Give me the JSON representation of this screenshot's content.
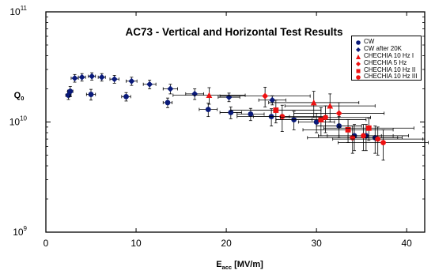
{
  "chart_data": {
    "type": "scatter",
    "title": "AC73  -  Vertical and Horizontal Test Results",
    "xlabel": "E",
    "xlabel_sub": "acc",
    "xlabel_unit": " [MV/m]",
    "ylabel": "Q",
    "ylabel_sub": "0",
    "yscale": "log",
    "xlim": [
      0,
      42
    ],
    "ylim": [
      1000000000.0,
      100000000000.0
    ],
    "x_ticks": [
      "0",
      "10",
      "20",
      "30",
      "40"
    ],
    "y_ticks": [
      {
        "base": "10",
        "exp": "9"
      },
      {
        "base": "10",
        "exp": "10"
      },
      {
        "base": "10",
        "exp": "11"
      }
    ],
    "legend_position": "top-right",
    "colors": {
      "navy": "#0a1a7a",
      "red": "#ee1111"
    },
    "series": [
      {
        "name": "CW",
        "marker": "circle",
        "color": "#0a1a7a",
        "points": [
          {
            "x": 2.5,
            "y": 17500000000.0,
            "xerr": 0.3,
            "yerr": 1500000000.0
          },
          {
            "x": 2.7,
            "y": 19000000000.0,
            "xerr": 0.3,
            "yerr": 2000000000.0
          },
          {
            "x": 5.0,
            "y": 17800000000.0,
            "xerr": 0.5,
            "yerr": 2000000000.0
          },
          {
            "x": 8.9,
            "y": 17000000000.0,
            "xerr": 0.5,
            "yerr": 1500000000.0
          },
          {
            "x": 13.5,
            "y": 15000000000.0,
            "xerr": 0.5,
            "yerr": 1500000000.0
          },
          {
            "x": 18.0,
            "y": 13000000000.0,
            "xerr": 1.0,
            "yerr": 1800000000.0
          },
          {
            "x": 20.5,
            "y": 12200000000.0,
            "xerr": 1.2,
            "yerr": 1500000000.0
          },
          {
            "x": 22.7,
            "y": 11800000000.0,
            "xerr": 1.5,
            "yerr": 1500000000.0
          },
          {
            "x": 25.0,
            "y": 11200000000.0,
            "xerr": 2.0,
            "yerr": 2000000000.0
          },
          {
            "x": 27.5,
            "y": 10500000000.0,
            "xerr": 2.0,
            "yerr": 2000000000.0
          },
          {
            "x": 30.0,
            "y": 10000000000.0,
            "xerr": 2.0,
            "yerr": 2000000000.0
          },
          {
            "x": 32.5,
            "y": 9200000000.0,
            "xerr": 2.5,
            "yerr": 2000000000.0
          },
          {
            "x": 34.2,
            "y": 7500000000.0,
            "xerr": 3.0,
            "yerr": 2000000000.0
          },
          {
            "x": 35.5,
            "y": 7500000000.0,
            "xerr": 3.0,
            "yerr": 2000000000.0
          },
          {
            "x": 36.5,
            "y": 7200000000.0,
            "xerr": 3.0,
            "yerr": 2000000000.0
          }
        ]
      },
      {
        "name": "CW after 20K",
        "marker": "diamond",
        "color": "#0a1a7a",
        "points": [
          {
            "x": 3.2,
            "y": 25000000000.0,
            "xerr": 0.4,
            "yerr": 2000000000.0
          },
          {
            "x": 4.0,
            "y": 25500000000.0,
            "xerr": 0.4,
            "yerr": 2000000000.0
          },
          {
            "x": 5.1,
            "y": 26000000000.0,
            "xerr": 0.4,
            "yerr": 2000000000.0
          },
          {
            "x": 6.2,
            "y": 25500000000.0,
            "xerr": 0.4,
            "yerr": 2000000000.0
          },
          {
            "x": 7.6,
            "y": 24500000000.0,
            "xerr": 0.5,
            "yerr": 2000000000.0
          },
          {
            "x": 9.5,
            "y": 23500000000.0,
            "xerr": 0.6,
            "yerr": 2000000000.0
          },
          {
            "x": 11.5,
            "y": 22000000000.0,
            "xerr": 0.7,
            "yerr": 2000000000.0
          },
          {
            "x": 13.8,
            "y": 20000000000.0,
            "xerr": 0.8,
            "yerr": 2000000000.0
          },
          {
            "x": 16.5,
            "y": 18000000000.0,
            "xerr": 1.0,
            "yerr": 2000000000.0
          },
          {
            "x": 20.3,
            "y": 16800000000.0,
            "xerr": 1.2,
            "yerr": 1500000000.0
          },
          {
            "x": 25.1,
            "y": 15800000000.0,
            "xerr": 1.5,
            "yerr": 1500000000.0
          }
        ]
      },
      {
        "name": "CHECHIA 10 Hz I",
        "marker": "triangle",
        "color": "#ee1111",
        "points": [
          {
            "x": 18.1,
            "y": 17500000000.0,
            "xerr": 4.0,
            "yerr": 3000000000.0
          },
          {
            "x": 29.7,
            "y": 15000000000.0,
            "xerr": 5.0,
            "yerr": 4000000000.0
          },
          {
            "x": 31.5,
            "y": 14000000000.0,
            "xerr": 5.0,
            "yerr": 4000000000.0
          }
        ]
      },
      {
        "name": "CHECHIA 5 Hz",
        "marker": "diamond",
        "color": "#ee1111",
        "points": [
          {
            "x": 24.3,
            "y": 17200000000.0,
            "xerr": 5.0,
            "yerr": 3500000000.0
          },
          {
            "x": 32.5,
            "y": 12000000000.0,
            "xerr": 5.0,
            "yerr": 3000000000.0
          }
        ]
      },
      {
        "name": "CHECHIA 10 Hz II",
        "marker": "square",
        "color": "#ee1111",
        "points": [
          {
            "x": 25.5,
            "y": 12800000000.0,
            "xerr": 5.0,
            "yerr": 3000000000.0
          },
          {
            "x": 30.5,
            "y": 10500000000.0,
            "xerr": 5.0,
            "yerr": 3000000000.0
          },
          {
            "x": 33.5,
            "y": 8500000000.0,
            "xerr": 5.0,
            "yerr": 2000000000.0
          },
          {
            "x": 35.8,
            "y": 8800000000.0,
            "xerr": 5.0,
            "yerr": 2000000000.0
          }
        ]
      },
      {
        "name": "CHECHIA 10 Hz III",
        "marker": "circle",
        "color": "#ee1111",
        "points": [
          {
            "x": 26.2,
            "y": 11200000000.0,
            "xerr": 5.0,
            "yerr": 3000000000.0
          },
          {
            "x": 31.0,
            "y": 11000000000.0,
            "xerr": 5.0,
            "yerr": 3000000000.0
          },
          {
            "x": 34.0,
            "y": 7200000000.0,
            "xerr": 5.0,
            "yerr": 2000000000.0
          },
          {
            "x": 35.2,
            "y": 7500000000.0,
            "xerr": 5.0,
            "yerr": 2000000000.0
          },
          {
            "x": 36.8,
            "y": 7000000000.0,
            "xerr": 5.0,
            "yerr": 2000000000.0
          },
          {
            "x": 37.4,
            "y": 6500000000.0,
            "xerr": 5.0,
            "yerr": 2000000000.0
          }
        ]
      }
    ]
  }
}
